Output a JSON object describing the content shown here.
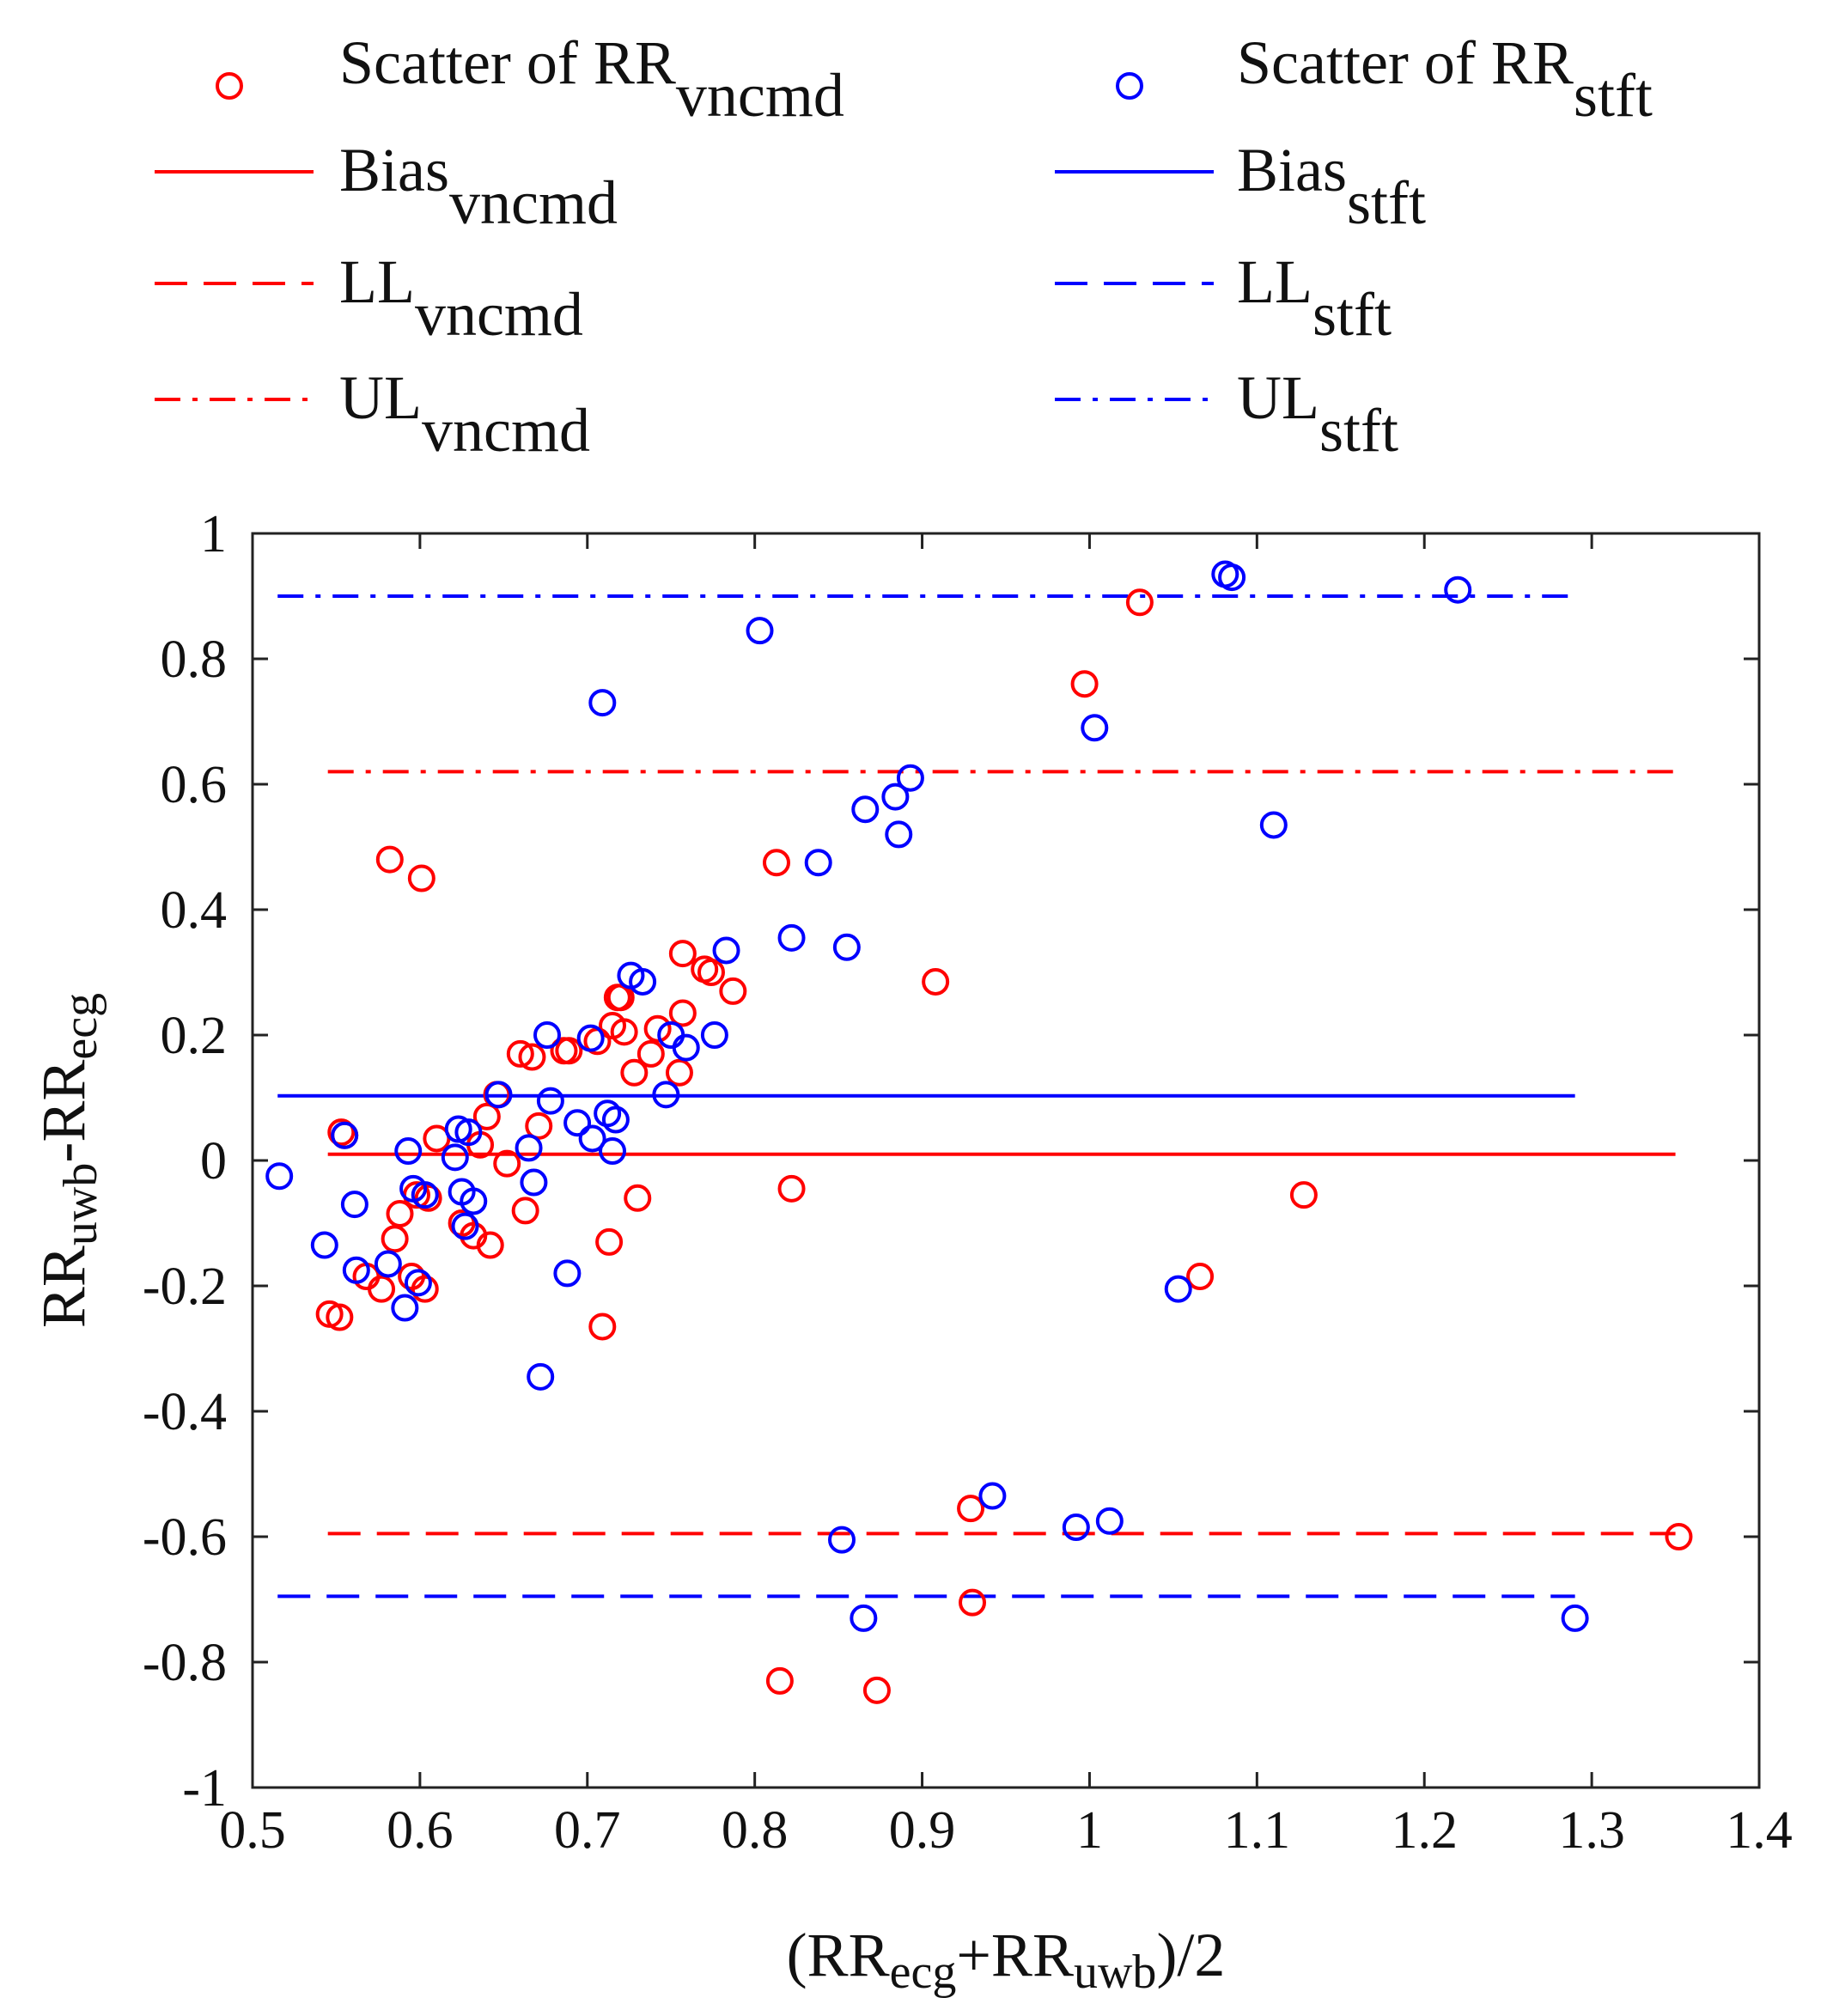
{
  "chart_data": {
    "type": "scatter",
    "title": "",
    "xlabel": {
      "pre": "(RR",
      "sub1": "ecg",
      "mid": "+RR",
      "sub2": "uwb",
      "post": ")/2"
    },
    "ylabel": {
      "pre": "RR",
      "sub1": "uwb",
      "mid": "-RR",
      "sub2": "ecg"
    },
    "xlim": [
      0.5,
      1.4
    ],
    "ylim": [
      -1,
      1
    ],
    "xticks": [
      0.5,
      0.6,
      0.7,
      0.8,
      0.9,
      1.0,
      1.1,
      1.2,
      1.3,
      1.4
    ],
    "xtick_labels": [
      "0.5",
      "0.6",
      "0.7",
      "0.8",
      "0.9",
      "1",
      "1.1",
      "1.2",
      "1.3",
      "1.4"
    ],
    "yticks": [
      -1,
      -0.8,
      -0.6,
      -0.4,
      -0.2,
      0,
      0.2,
      0.4,
      0.6,
      0.8,
      1
    ],
    "ytick_labels": [
      "-1",
      "-0.8",
      "-0.6",
      "-0.4",
      "-0.2",
      "0",
      "0.2",
      "0.4",
      "0.6",
      "0.8",
      "1"
    ],
    "grid": false,
    "legend_placement": "top, two columns",
    "legend": [
      {
        "id": "scatter-vncmd",
        "prefix": "Scatter of RR",
        "sub": "vncmd",
        "kind": "marker",
        "color": "#ff0000"
      },
      {
        "id": "scatter-stft",
        "prefix": "Scatter of RR",
        "sub": "stft",
        "kind": "marker",
        "color": "#0000ff"
      },
      {
        "id": "bias-vncmd",
        "prefix": "Bias",
        "sub": "vncmd",
        "kind": "solid",
        "color": "#ff0000"
      },
      {
        "id": "bias-stft",
        "prefix": "Bias",
        "sub": "stft",
        "kind": "solid",
        "color": "#0000ff"
      },
      {
        "id": "ll-vncmd",
        "prefix": "LL",
        "sub": "vncmd",
        "kind": "dashed",
        "color": "#ff0000"
      },
      {
        "id": "ll-stft",
        "prefix": "LL",
        "sub": "stft",
        "kind": "dashed",
        "color": "#0000ff"
      },
      {
        "id": "ul-vncmd",
        "prefix": "UL",
        "sub": "vncmd",
        "kind": "dashdot",
        "color": "#ff0000"
      },
      {
        "id": "ul-stft",
        "prefix": "UL",
        "sub": "stft",
        "kind": "dashdot",
        "color": "#0000ff"
      }
    ],
    "reference_lines": [
      {
        "name": "Bias vncmd",
        "series": "vncmd",
        "kind": "solid",
        "y": 0.01,
        "x_range": [
          0.545,
          1.35
        ],
        "color": "#ff0000"
      },
      {
        "name": "LL vncmd",
        "series": "vncmd",
        "kind": "dashed",
        "y": -0.595,
        "x_range": [
          0.545,
          1.35
        ],
        "color": "#ff0000"
      },
      {
        "name": "UL vncmd",
        "series": "vncmd",
        "kind": "dashdot",
        "y": 0.62,
        "x_range": [
          0.545,
          1.35
        ],
        "color": "#ff0000"
      },
      {
        "name": "Bias stft",
        "series": "stft",
        "kind": "solid",
        "y": 0.103,
        "x_range": [
          0.515,
          1.29
        ],
        "color": "#0000ff"
      },
      {
        "name": "LL stft",
        "series": "stft",
        "kind": "dashed",
        "y": -0.695,
        "x_range": [
          0.515,
          1.29
        ],
        "color": "#0000ff"
      },
      {
        "name": "UL stft",
        "series": "stft",
        "kind": "dashdot",
        "y": 0.9,
        "x_range": [
          0.515,
          1.29
        ],
        "color": "#0000ff"
      }
    ],
    "series": [
      {
        "name": "Scatter of RR vncmd",
        "color": "#ff0000",
        "points": [
          [
            0.546,
            -0.245
          ],
          [
            0.552,
            -0.25
          ],
          [
            0.553,
            0.045
          ],
          [
            0.555,
            0.04
          ],
          [
            0.568,
            -0.185
          ],
          [
            0.577,
            -0.205
          ],
          [
            0.582,
            0.48
          ],
          [
            0.585,
            -0.125
          ],
          [
            0.588,
            -0.085
          ],
          [
            0.595,
            -0.185
          ],
          [
            0.598,
            -0.055
          ],
          [
            0.601,
            0.45
          ],
          [
            0.603,
            -0.205
          ],
          [
            0.605,
            -0.06
          ],
          [
            0.61,
            0.035
          ],
          [
            0.625,
            -0.1
          ],
          [
            0.632,
            -0.12
          ],
          [
            0.636,
            0.025
          ],
          [
            0.64,
            0.07
          ],
          [
            0.642,
            -0.135
          ],
          [
            0.646,
            0.105
          ],
          [
            0.652,
            -0.005
          ],
          [
            0.66,
            0.17
          ],
          [
            0.663,
            -0.08
          ],
          [
            0.667,
            0.165
          ],
          [
            0.671,
            0.055
          ],
          [
            0.686,
            0.175
          ],
          [
            0.689,
            0.175
          ],
          [
            0.706,
            0.19
          ],
          [
            0.709,
            -0.265
          ],
          [
            0.713,
            -0.13
          ],
          [
            0.715,
            0.215
          ],
          [
            0.718,
            0.26
          ],
          [
            0.72,
            0.26
          ],
          [
            0.722,
            0.205
          ],
          [
            0.728,
            0.14
          ],
          [
            0.73,
            -0.06
          ],
          [
            0.738,
            0.17
          ],
          [
            0.742,
            0.21
          ],
          [
            0.755,
            0.14
          ],
          [
            0.757,
            0.33
          ],
          [
            0.757,
            0.235
          ],
          [
            0.77,
            0.305
          ],
          [
            0.774,
            0.3
          ],
          [
            0.787,
            0.27
          ],
          [
            0.813,
            0.475
          ],
          [
            0.815,
            -0.83
          ],
          [
            0.822,
            -0.045
          ],
          [
            0.873,
            -0.845
          ],
          [
            0.908,
            0.285
          ],
          [
            0.929,
            -0.555
          ],
          [
            0.93,
            -0.705
          ],
          [
            0.997,
            0.76
          ],
          [
            1.03,
            0.89
          ],
          [
            1.066,
            -0.185
          ],
          [
            1.128,
            -0.055
          ],
          [
            1.352,
            -0.6
          ]
        ]
      },
      {
        "name": "Scatter of RR stft",
        "color": "#0000ff",
        "points": [
          [
            0.516,
            -0.025
          ],
          [
            0.543,
            -0.135
          ],
          [
            0.555,
            0.04
          ],
          [
            0.561,
            -0.07
          ],
          [
            0.562,
            -0.175
          ],
          [
            0.581,
            -0.165
          ],
          [
            0.591,
            -0.235
          ],
          [
            0.593,
            0.015
          ],
          [
            0.596,
            -0.045
          ],
          [
            0.599,
            -0.195
          ],
          [
            0.603,
            -0.055
          ],
          [
            0.621,
            0.005
          ],
          [
            0.623,
            0.05
          ],
          [
            0.625,
            -0.05
          ],
          [
            0.627,
            -0.105
          ],
          [
            0.629,
            0.045
          ],
          [
            0.632,
            -0.065
          ],
          [
            0.647,
            0.105
          ],
          [
            0.665,
            0.02
          ],
          [
            0.668,
            -0.035
          ],
          [
            0.672,
            -0.345
          ],
          [
            0.676,
            0.2
          ],
          [
            0.678,
            0.095
          ],
          [
            0.688,
            -0.18
          ],
          [
            0.694,
            0.06
          ],
          [
            0.702,
            0.195
          ],
          [
            0.703,
            0.035
          ],
          [
            0.709,
            0.73
          ],
          [
            0.712,
            0.075
          ],
          [
            0.715,
            0.015
          ],
          [
            0.717,
            0.065
          ],
          [
            0.726,
            0.295
          ],
          [
            0.733,
            0.285
          ],
          [
            0.747,
            0.105
          ],
          [
            0.75,
            0.2
          ],
          [
            0.759,
            0.18
          ],
          [
            0.776,
            0.2
          ],
          [
            0.783,
            0.335
          ],
          [
            0.803,
            0.845
          ],
          [
            0.822,
            0.355
          ],
          [
            0.838,
            0.475
          ],
          [
            0.852,
            -0.605
          ],
          [
            0.855,
            0.34
          ],
          [
            0.865,
            -0.73
          ],
          [
            0.866,
            0.56
          ],
          [
            0.884,
            0.58
          ],
          [
            0.886,
            0.52
          ],
          [
            0.893,
            0.61
          ],
          [
            0.942,
            -0.535
          ],
          [
            0.992,
            -0.585
          ],
          [
            1.003,
            0.69
          ],
          [
            1.012,
            -0.575
          ],
          [
            1.053,
            -0.205
          ],
          [
            1.081,
            0.935
          ],
          [
            1.085,
            0.93
          ],
          [
            1.11,
            0.535
          ],
          [
            1.22,
            0.91
          ],
          [
            1.29,
            -0.73
          ]
        ]
      }
    ]
  }
}
